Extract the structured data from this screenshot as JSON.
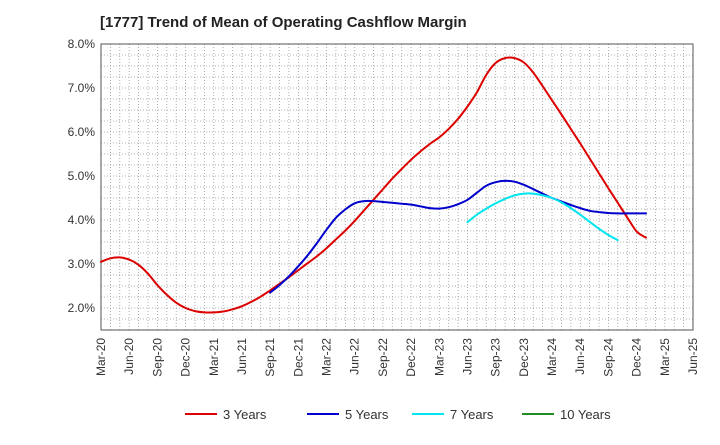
{
  "chart_data": {
    "type": "line",
    "title": "[1777]  Trend of Mean of Operating Cashflow Margin",
    "xlabel": "",
    "ylabel": "",
    "y_unit": "%",
    "ylim": [
      1.5,
      8.0
    ],
    "y_ticks": [
      "2.0%",
      "3.0%",
      "4.0%",
      "5.0%",
      "6.0%",
      "7.0%",
      "8.0%"
    ],
    "y_tick_values": [
      2.0,
      3.0,
      4.0,
      5.0,
      6.0,
      7.0,
      8.0
    ],
    "x_ticks": [
      "Mar-20",
      "Jun-20",
      "Sep-20",
      "Dec-20",
      "Mar-21",
      "Jun-21",
      "Sep-21",
      "Dec-21",
      "Mar-22",
      "Jun-22",
      "Sep-22",
      "Dec-22",
      "Mar-23",
      "Jun-23",
      "Sep-23",
      "Dec-23",
      "Mar-24",
      "Jun-24",
      "Sep-24",
      "Dec-24",
      "Mar-25",
      "Jun-25"
    ],
    "grid": true,
    "legend_position": "bottom",
    "series": [
      {
        "name": "3 Years",
        "color": "#dd0000",
        "points": [
          [
            "Mar-20",
            3.05
          ],
          [
            "Apr-20",
            3.13
          ],
          [
            "May-20",
            3.15
          ],
          [
            "Jun-20",
            3.1
          ],
          [
            "Jul-20",
            2.98
          ],
          [
            "Aug-20",
            2.78
          ],
          [
            "Sep-20",
            2.52
          ],
          [
            "Oct-20",
            2.3
          ],
          [
            "Nov-20",
            2.12
          ],
          [
            "Dec-20",
            2.0
          ],
          [
            "Jan-21",
            1.93
          ],
          [
            "Feb-21",
            1.9
          ],
          [
            "Mar-21",
            1.9
          ],
          [
            "Apr-21",
            1.92
          ],
          [
            "May-21",
            1.97
          ],
          [
            "Jun-21",
            2.04
          ],
          [
            "Jul-21",
            2.14
          ],
          [
            "Aug-21",
            2.26
          ],
          [
            "Sep-21",
            2.4
          ],
          [
            "Oct-21",
            2.55
          ],
          [
            "Nov-21",
            2.7
          ],
          [
            "Dec-21",
            2.86
          ],
          [
            "Jan-22",
            3.02
          ],
          [
            "Feb-22",
            3.18
          ],
          [
            "Mar-22",
            3.36
          ],
          [
            "Apr-22",
            3.56
          ],
          [
            "May-22",
            3.76
          ],
          [
            "Jun-22",
            3.98
          ],
          [
            "Jul-22",
            4.22
          ],
          [
            "Aug-22",
            4.46
          ],
          [
            "Sep-22",
            4.7
          ],
          [
            "Oct-22",
            4.94
          ],
          [
            "Nov-22",
            5.16
          ],
          [
            "Dec-22",
            5.37
          ],
          [
            "Jan-23",
            5.56
          ],
          [
            "Feb-23",
            5.73
          ],
          [
            "Mar-23",
            5.88
          ],
          [
            "Apr-23",
            6.07
          ],
          [
            "May-23",
            6.3
          ],
          [
            "Jun-23",
            6.58
          ],
          [
            "Jul-23",
            6.9
          ],
          [
            "Aug-23",
            7.3
          ],
          [
            "Sep-23",
            7.57
          ],
          [
            "Oct-23",
            7.68
          ],
          [
            "Nov-23",
            7.68
          ],
          [
            "Dec-23",
            7.58
          ],
          [
            "Jan-24",
            7.35
          ],
          [
            "Feb-24",
            7.04
          ],
          [
            "Mar-24",
            6.72
          ],
          [
            "Apr-24",
            6.4
          ],
          [
            "May-24",
            6.07
          ],
          [
            "Jun-24",
            5.74
          ],
          [
            "Jul-24",
            5.4
          ],
          [
            "Aug-24",
            5.06
          ],
          [
            "Sep-24",
            4.72
          ],
          [
            "Oct-24",
            4.39
          ],
          [
            "Nov-24",
            4.06
          ],
          [
            "Dec-24",
            3.74
          ],
          [
            "Jan-25",
            3.6
          ]
        ]
      },
      {
        "name": "5 Years",
        "color": "#0000cc",
        "points": [
          [
            "Sep-21",
            2.35
          ],
          [
            "Oct-21",
            2.52
          ],
          [
            "Nov-21",
            2.72
          ],
          [
            "Dec-21",
            2.95
          ],
          [
            "Jan-22",
            3.2
          ],
          [
            "Feb-22",
            3.48
          ],
          [
            "Mar-22",
            3.78
          ],
          [
            "Apr-22",
            4.05
          ],
          [
            "May-22",
            4.24
          ],
          [
            "Jun-22",
            4.38
          ],
          [
            "Jul-22",
            4.43
          ],
          [
            "Aug-22",
            4.43
          ],
          [
            "Sep-22",
            4.41
          ],
          [
            "Oct-22",
            4.39
          ],
          [
            "Nov-22",
            4.37
          ],
          [
            "Dec-22",
            4.35
          ],
          [
            "Jan-23",
            4.31
          ],
          [
            "Feb-23",
            4.27
          ],
          [
            "Mar-23",
            4.26
          ],
          [
            "Apr-23",
            4.29
          ],
          [
            "May-23",
            4.36
          ],
          [
            "Jun-23",
            4.46
          ],
          [
            "Jul-23",
            4.62
          ],
          [
            "Aug-23",
            4.78
          ],
          [
            "Sep-23",
            4.86
          ],
          [
            "Oct-23",
            4.89
          ],
          [
            "Nov-23",
            4.87
          ],
          [
            "Dec-23",
            4.8
          ],
          [
            "Jan-24",
            4.7
          ],
          [
            "Feb-24",
            4.6
          ],
          [
            "Mar-24",
            4.5
          ],
          [
            "Apr-24",
            4.42
          ],
          [
            "May-24",
            4.34
          ],
          [
            "Jun-24",
            4.27
          ],
          [
            "Jul-24",
            4.21
          ],
          [
            "Aug-24",
            4.18
          ],
          [
            "Sep-24",
            4.16
          ],
          [
            "Oct-24",
            4.15
          ],
          [
            "Nov-24",
            4.15
          ],
          [
            "Dec-24",
            4.15
          ],
          [
            "Jan-25",
            4.15
          ]
        ]
      },
      {
        "name": "7 Years",
        "color": "#00e5ee",
        "points": [
          [
            "Jun-23",
            3.95
          ],
          [
            "Jul-23",
            4.12
          ],
          [
            "Aug-23",
            4.26
          ],
          [
            "Sep-23",
            4.38
          ],
          [
            "Oct-23",
            4.48
          ],
          [
            "Nov-23",
            4.56
          ],
          [
            "Dec-23",
            4.6
          ],
          [
            "Jan-24",
            4.6
          ],
          [
            "Feb-24",
            4.56
          ],
          [
            "Mar-24",
            4.5
          ],
          [
            "Apr-24",
            4.4
          ],
          [
            "May-24",
            4.27
          ],
          [
            "Jun-24",
            4.12
          ],
          [
            "Jul-24",
            3.96
          ],
          [
            "Aug-24",
            3.8
          ],
          [
            "Sep-24",
            3.66
          ],
          [
            "Oct-24",
            3.54
          ]
        ]
      },
      {
        "name": "10 Years",
        "color": "#228b22",
        "points": []
      }
    ]
  }
}
